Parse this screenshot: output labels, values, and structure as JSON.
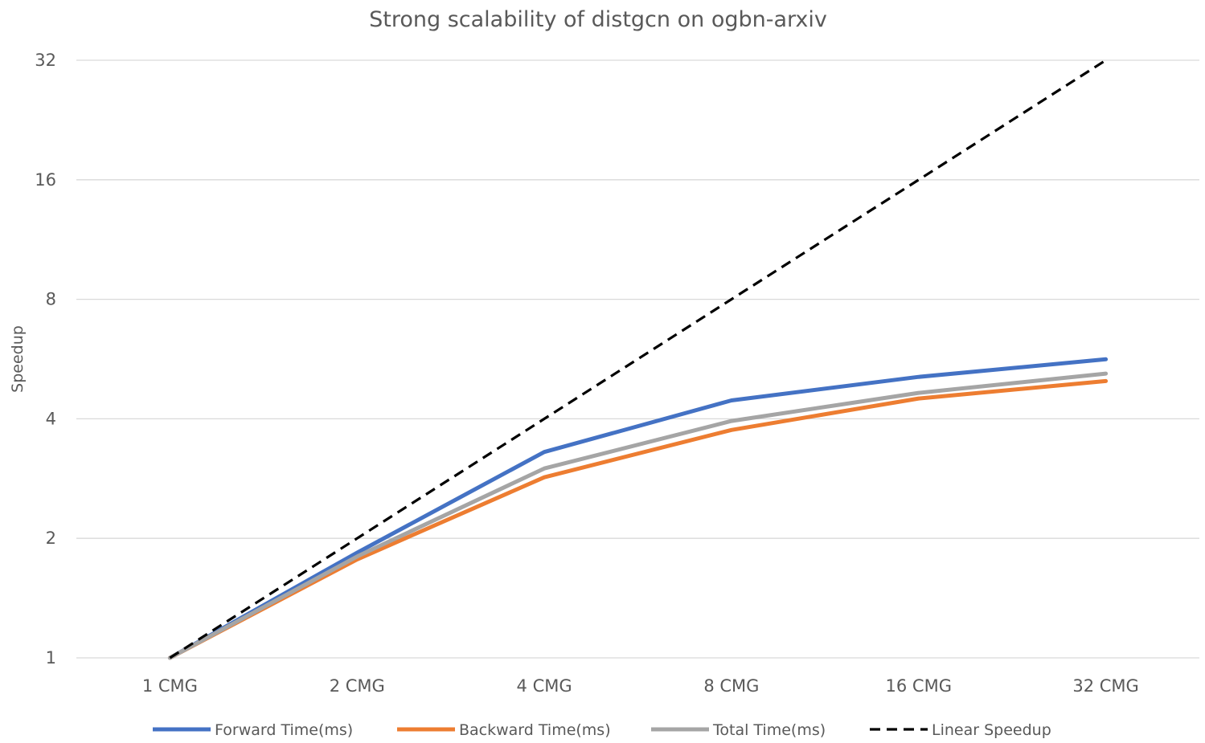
{
  "chart_data": {
    "type": "line",
    "title": "Strong scalability of distgcn on ogbn-arxiv",
    "xlabel": "",
    "ylabel": "Speedup",
    "y_scale": "log2",
    "ylim": [
      1,
      32
    ],
    "yticks": [
      "1",
      "2",
      "4",
      "8",
      "16",
      "32"
    ],
    "categories": [
      "1 CMG",
      "2 CMG",
      "4 CMG",
      "8 CMG",
      "16 CMG",
      "32 CMG"
    ],
    "grid": true,
    "legend_position": "bottom",
    "series": [
      {
        "name": "Forward Time(ms)",
        "values": [
          1.0,
          1.84,
          3.3,
          4.45,
          5.1,
          5.65
        ],
        "color": "#4472c4",
        "dash": "solid"
      },
      {
        "name": "Backward Time(ms)",
        "values": [
          1.0,
          1.77,
          2.85,
          3.75,
          4.5,
          4.98
        ],
        "color": "#ed7d31",
        "dash": "solid"
      },
      {
        "name": "Total Time(ms)",
        "values": [
          1.0,
          1.8,
          3.0,
          3.95,
          4.65,
          5.2
        ],
        "color": "#a5a5a5",
        "dash": "solid"
      },
      {
        "name": "Linear Speedup",
        "values": [
          1,
          2,
          4,
          8,
          16,
          32
        ],
        "color": "#000000",
        "dash": "dashed"
      }
    ]
  }
}
